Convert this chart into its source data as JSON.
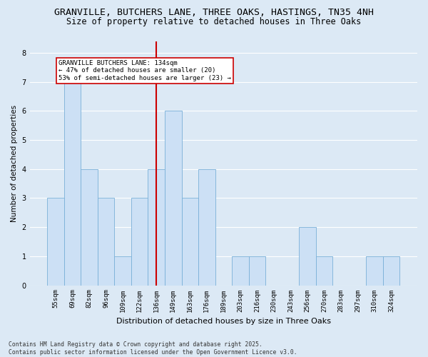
{
  "title": "GRANVILLE, BUTCHERS LANE, THREE OAKS, HASTINGS, TN35 4NH",
  "subtitle": "Size of property relative to detached houses in Three Oaks",
  "xlabel": "Distribution of detached houses by size in Three Oaks",
  "ylabel": "Number of detached properties",
  "categories": [
    "55sqm",
    "69sqm",
    "82sqm",
    "96sqm",
    "109sqm",
    "122sqm",
    "136sqm",
    "149sqm",
    "163sqm",
    "176sqm",
    "189sqm",
    "203sqm",
    "216sqm",
    "230sqm",
    "243sqm",
    "256sqm",
    "270sqm",
    "283sqm",
    "297sqm",
    "310sqm",
    "324sqm"
  ],
  "values": [
    3,
    7,
    4,
    3,
    1,
    3,
    4,
    6,
    3,
    4,
    0,
    1,
    1,
    0,
    0,
    2,
    1,
    0,
    0,
    1,
    1
  ],
  "bar_color": "#cce0f5",
  "bar_edge_color": "#7ab0d8",
  "vline_index": 6,
  "vline_color": "#cc0000",
  "annotation_text": "GRANVILLE BUTCHERS LANE: 134sqm\n← 47% of detached houses are smaller (20)\n53% of semi-detached houses are larger (23) →",
  "annotation_box_color": "#ffffff",
  "annotation_box_edge_color": "#cc0000",
  "ylim": [
    0,
    8.4
  ],
  "yticks": [
    0,
    1,
    2,
    3,
    4,
    5,
    6,
    7,
    8
  ],
  "background_color": "#dce9f5",
  "plot_background_color": "#dce9f5",
  "grid_color": "#ffffff",
  "footer": "Contains HM Land Registry data © Crown copyright and database right 2025.\nContains public sector information licensed under the Open Government Licence v3.0.",
  "title_fontsize": 9.5,
  "subtitle_fontsize": 8.5,
  "xlabel_fontsize": 8,
  "ylabel_fontsize": 7.5,
  "tick_fontsize": 6.5,
  "annotation_fontsize": 6.5,
  "footer_fontsize": 5.8
}
